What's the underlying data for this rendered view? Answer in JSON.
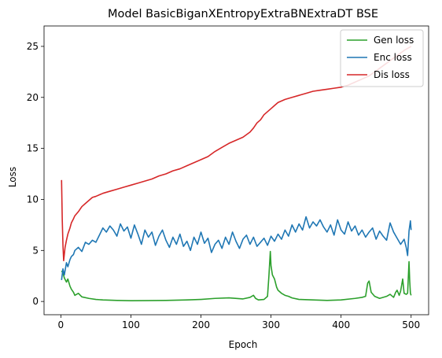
{
  "chart_data": {
    "type": "line",
    "title": "Model BasicBiganXEntropyExtraBNExtraDT BSE",
    "xlabel": "Epoch",
    "ylabel": "Loss",
    "xlim": [
      -24,
      525
    ],
    "ylim": [
      -1.3,
      27
    ],
    "xticks": [
      0,
      100,
      200,
      300,
      400,
      500
    ],
    "yticks": [
      0,
      5,
      10,
      15,
      20,
      25
    ],
    "grid": false,
    "legend_position": "top-right",
    "series": [
      {
        "name": "Gen loss",
        "color": "#2ca02c",
        "x": [
          1,
          3,
          5,
          8,
          10,
          13,
          15,
          18,
          20,
          25,
          30,
          40,
          50,
          60,
          80,
          100,
          120,
          150,
          180,
          200,
          220,
          240,
          260,
          270,
          275,
          278,
          282,
          290,
          295,
          297,
          299,
          300,
          302,
          305,
          308,
          310,
          315,
          320,
          325,
          330,
          340,
          360,
          380,
          400,
          420,
          430,
          435,
          438,
          440,
          443,
          448,
          455,
          465,
          470,
          475,
          478,
          480,
          483,
          485,
          488,
          490,
          493,
          495,
          497,
          498,
          499,
          500
        ],
        "y": [
          3.0,
          2.8,
          2.3,
          1.9,
          2.2,
          1.5,
          1.2,
          0.9,
          0.6,
          0.8,
          0.45,
          0.3,
          0.2,
          0.15,
          0.1,
          0.07,
          0.08,
          0.1,
          0.15,
          0.2,
          0.3,
          0.35,
          0.25,
          0.4,
          0.6,
          0.3,
          0.15,
          0.2,
          0.5,
          2.5,
          4.9,
          3.5,
          2.6,
          2.2,
          1.4,
          1.1,
          0.8,
          0.6,
          0.5,
          0.35,
          0.2,
          0.15,
          0.1,
          0.15,
          0.3,
          0.4,
          0.5,
          1.8,
          2.0,
          0.9,
          0.5,
          0.3,
          0.5,
          0.7,
          0.4,
          0.9,
          1.1,
          0.6,
          1.0,
          2.2,
          0.8,
          0.7,
          0.8,
          3.9,
          2.0,
          0.8,
          0.6
        ]
      },
      {
        "name": "Enc loss",
        "color": "#1f77b4",
        "x": [
          1,
          3,
          5,
          8,
          10,
          13,
          15,
          18,
          20,
          25,
          30,
          35,
          40,
          45,
          50,
          55,
          60,
          65,
          70,
          75,
          80,
          85,
          90,
          95,
          100,
          105,
          110,
          115,
          120,
          125,
          130,
          135,
          140,
          145,
          150,
          155,
          160,
          165,
          170,
          175,
          180,
          185,
          190,
          195,
          200,
          205,
          210,
          215,
          220,
          225,
          230,
          235,
          240,
          245,
          250,
          255,
          260,
          265,
          270,
          275,
          280,
          285,
          290,
          295,
          300,
          305,
          310,
          315,
          320,
          325,
          330,
          335,
          340,
          345,
          350,
          355,
          360,
          365,
          370,
          375,
          380,
          385,
          390,
          395,
          400,
          405,
          410,
          415,
          420,
          425,
          430,
          435,
          440,
          445,
          450,
          455,
          460,
          465,
          470,
          475,
          480,
          485,
          490,
          493,
          495,
          497,
          499,
          500
        ],
        "y": [
          2.1,
          3.2,
          2.6,
          3.8,
          3.4,
          4.1,
          4.4,
          4.6,
          5.0,
          5.3,
          4.9,
          5.8,
          5.6,
          6.0,
          5.8,
          6.5,
          7.2,
          6.8,
          7.4,
          7.0,
          6.4,
          7.6,
          6.9,
          7.3,
          6.2,
          7.5,
          6.6,
          5.6,
          7.0,
          6.3,
          6.8,
          5.5,
          6.4,
          7.0,
          6.0,
          5.3,
          6.3,
          5.6,
          6.6,
          5.4,
          5.9,
          5.0,
          6.3,
          5.6,
          6.8,
          5.7,
          6.2,
          4.8,
          5.6,
          6.0,
          5.2,
          6.3,
          5.6,
          6.8,
          5.9,
          5.2,
          6.1,
          6.5,
          5.6,
          6.3,
          5.4,
          5.8,
          6.2,
          5.5,
          6.4,
          5.9,
          6.6,
          6.1,
          7.0,
          6.4,
          7.5,
          6.8,
          7.6,
          7.0,
          8.3,
          7.2,
          7.8,
          7.4,
          8.0,
          7.3,
          6.8,
          7.5,
          6.5,
          8.0,
          7.0,
          6.6,
          7.8,
          6.9,
          7.4,
          6.5,
          7.0,
          6.3,
          6.8,
          7.2,
          6.1,
          6.9,
          6.4,
          6.0,
          7.7,
          6.8,
          6.2,
          5.6,
          6.1,
          5.3,
          4.5,
          6.9,
          7.9,
          7.0
        ]
      },
      {
        "name": "Dis loss",
        "color": "#d62728",
        "x": [
          1,
          2,
          3,
          4,
          6,
          8,
          10,
          13,
          15,
          18,
          20,
          25,
          30,
          35,
          40,
          45,
          50,
          60,
          70,
          80,
          90,
          100,
          110,
          120,
          130,
          140,
          150,
          160,
          170,
          180,
          190,
          200,
          210,
          220,
          230,
          240,
          250,
          260,
          270,
          275,
          280,
          285,
          290,
          295,
          300,
          305,
          310,
          320,
          330,
          340,
          350,
          360,
          370,
          380,
          390,
          400,
          410,
          420,
          430,
          440,
          450,
          460,
          470,
          480,
          490,
          500
        ],
        "y": [
          11.9,
          8.0,
          5.5,
          4.0,
          5.3,
          6.0,
          6.6,
          7.2,
          7.7,
          8.1,
          8.4,
          8.8,
          9.3,
          9.6,
          9.9,
          10.2,
          10.3,
          10.6,
          10.8,
          11.0,
          11.2,
          11.4,
          11.6,
          11.8,
          12.0,
          12.3,
          12.5,
          12.8,
          13.0,
          13.3,
          13.6,
          13.9,
          14.2,
          14.7,
          15.1,
          15.5,
          15.8,
          16.1,
          16.6,
          17.0,
          17.5,
          17.8,
          18.3,
          18.6,
          18.9,
          19.2,
          19.5,
          19.8,
          20.0,
          20.2,
          20.4,
          20.6,
          20.7,
          20.8,
          20.9,
          21.0,
          21.2,
          21.5,
          21.8,
          22.1,
          22.6,
          23.1,
          23.6,
          24.1,
          24.6,
          25.0
        ]
      }
    ]
  }
}
